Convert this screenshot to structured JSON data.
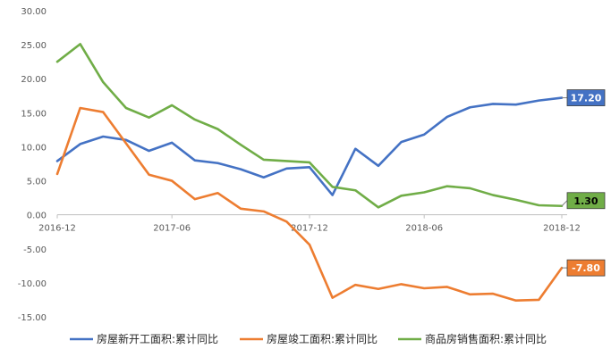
{
  "chart_data": {
    "type": "line",
    "title": "",
    "xlabel": "",
    "ylabel": "",
    "ylim": [
      -15,
      30
    ],
    "yticks": [
      "30.00",
      "25.00",
      "20.00",
      "15.00",
      "10.00",
      "5.00",
      "0.00",
      "-5.00",
      "-10.00",
      "-15.00"
    ],
    "x": [
      "2016-12",
      "2017-02",
      "2017-03",
      "2017-04",
      "2017-05",
      "2017-06",
      "2017-07",
      "2017-08",
      "2017-09",
      "2017-10",
      "2017-11",
      "2017-12",
      "2018-02",
      "2018-03",
      "2018-04",
      "2018-05",
      "2018-06",
      "2018-07",
      "2018-08",
      "2018-09",
      "2018-10",
      "2018-11",
      "2018-12"
    ],
    "xticks": [
      "2016-12",
      "2017-06",
      "2017-12",
      "2018-06",
      "2018-12"
    ],
    "grid": false,
    "legend_position": "bottom",
    "series": [
      {
        "name": "房屋新开工面积:累计同比",
        "color": "#4472C4",
        "values": [
          7.9,
          10.4,
          11.5,
          11.0,
          9.4,
          10.6,
          8.0,
          7.6,
          6.7,
          5.5,
          6.8,
          7.0,
          2.9,
          9.7,
          7.2,
          10.7,
          11.8,
          14.4,
          15.8,
          16.3,
          16.2,
          16.8,
          17.2
        ],
        "end_label": "17.20"
      },
      {
        "name": "房屋竣工面积:累计同比",
        "color": "#ED7D31",
        "values": [
          6.0,
          15.7,
          15.1,
          10.5,
          5.9,
          5.0,
          2.3,
          3.2,
          0.9,
          0.5,
          -1.0,
          -4.4,
          -12.2,
          -10.3,
          -10.9,
          -10.2,
          -10.8,
          -10.6,
          -11.7,
          -11.6,
          -12.6,
          -12.5,
          -7.8
        ],
        "end_label": "-7.80"
      },
      {
        "name": "商品房销售面积:累计同比",
        "color": "#70AD47",
        "values": [
          22.5,
          25.1,
          19.5,
          15.7,
          14.3,
          16.1,
          14.0,
          12.6,
          10.3,
          8.1,
          7.9,
          7.7,
          4.1,
          3.6,
          1.1,
          2.8,
          3.3,
          4.2,
          3.9,
          2.9,
          2.2,
          1.4,
          1.3
        ],
        "end_label": "1.30"
      }
    ]
  }
}
